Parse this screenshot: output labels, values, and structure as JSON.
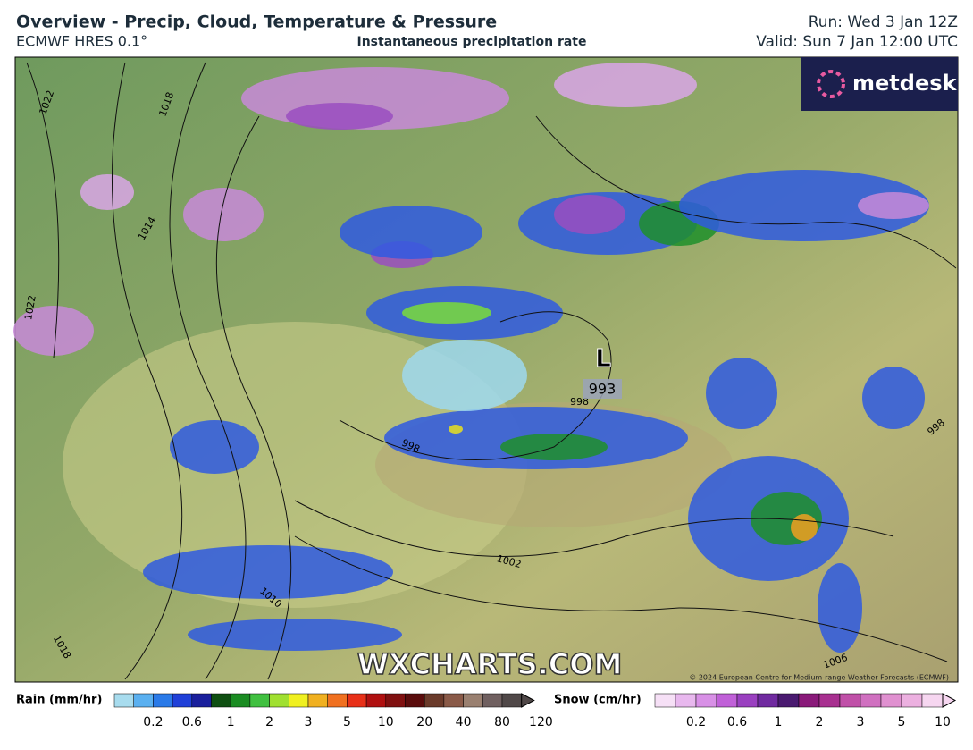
{
  "header": {
    "title": "Overview - Precip, Cloud, Temperature & Pressure",
    "model": "ECMWF HRES 0.1°",
    "subtitle": "Instantaneous precipitation rate",
    "run": "Run: Wed 3 Jan 12Z",
    "valid": "Valid: Sun 7 Jan 12:00 UTC"
  },
  "map": {
    "logo": "metdesk",
    "watermark": "WXCHARTS.COM",
    "copyright": "© 2024 European Centre for Medium-range Weather Forecasts (ECMWF)",
    "low": {
      "symbol": "L",
      "pressure": "993"
    },
    "isobar_labels": [
      "1022",
      "1018",
      "1014",
      "1022",
      "998",
      "998",
      "1002",
      "1010",
      "1018",
      "1006",
      "998"
    ]
  },
  "legend": {
    "rain": {
      "title": "Rain (mm/hr)",
      "labels": [
        "0.2",
        "0.6",
        "1",
        "2",
        "3",
        "5",
        "10",
        "20",
        "40",
        "80",
        "120"
      ]
    },
    "snow": {
      "title": "Snow (cm/hr)",
      "labels": [
        "0.2",
        "0.6",
        "1",
        "2",
        "3",
        "5",
        "10"
      ]
    }
  }
}
